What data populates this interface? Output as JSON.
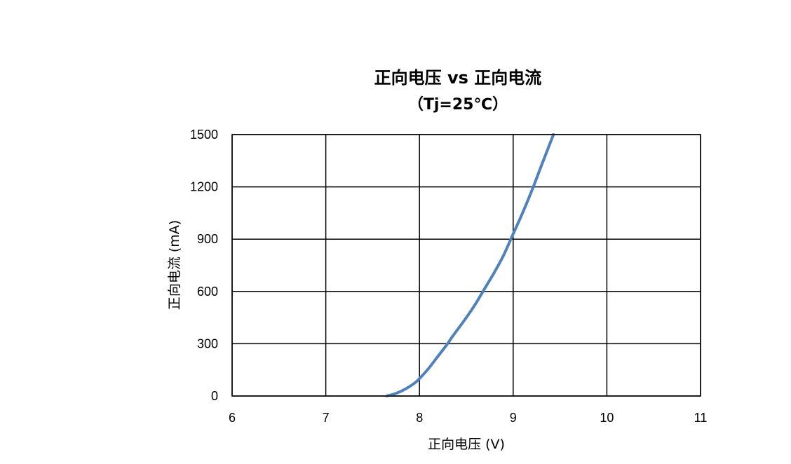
{
  "chart_data": {
    "type": "line",
    "title": "正向电压 vs 正向电流",
    "subtitle": "（Tj=25℃）",
    "xlabel": "正向电压 (V)",
    "ylabel": "正向电流 (mA)",
    "xlim": [
      6,
      11
    ],
    "ylim": [
      0,
      1500
    ],
    "x_ticks": [
      "6",
      "7",
      "8",
      "9",
      "10",
      "11"
    ],
    "y_ticks": [
      "0",
      "300",
      "600",
      "900",
      "1200",
      "1500"
    ],
    "grid": true,
    "legend": "none",
    "series": [
      {
        "color": "#4f81bd",
        "x": [
          7.65,
          7.75,
          7.85,
          7.95,
          8.0,
          8.1,
          8.2,
          8.3,
          8.35,
          8.5,
          8.6,
          8.7,
          8.8,
          8.9,
          9.0,
          9.1,
          9.2,
          9.3,
          9.43
        ],
        "y": [
          0,
          15,
          40,
          75,
          100,
          160,
          230,
          300,
          340,
          450,
          530,
          620,
          710,
          810,
          930,
          1050,
          1180,
          1320,
          1500
        ]
      }
    ]
  }
}
